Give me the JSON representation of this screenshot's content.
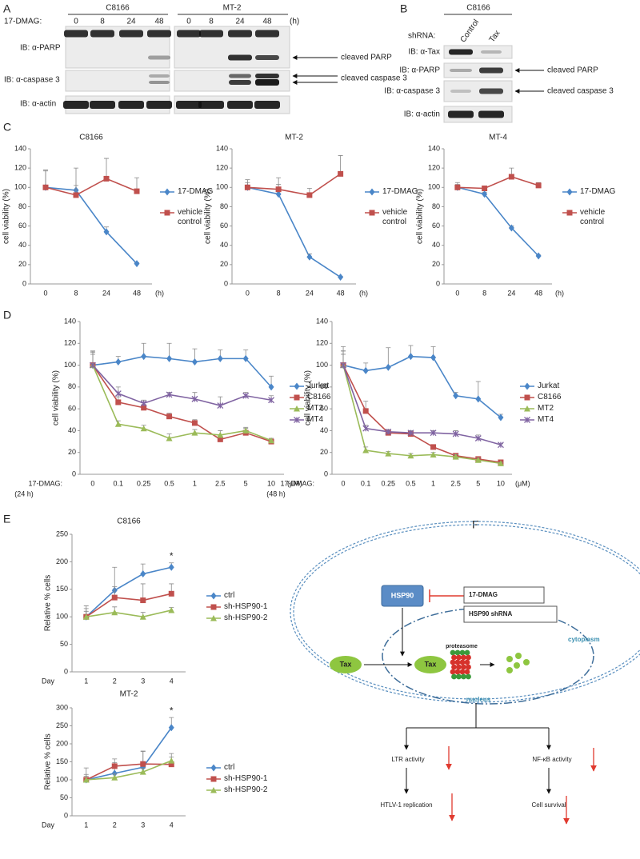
{
  "panels": [
    "A",
    "B",
    "C",
    "D",
    "E",
    "F"
  ],
  "blot_a": {
    "treatment_label": "17-DMAG:",
    "groups": [
      "C8166",
      "MT-2"
    ],
    "lanes": [
      0,
      8,
      24,
      48
    ],
    "unit": "(h)",
    "rows": [
      "IB: α-PARP",
      "IB: α-caspase 3",
      "IB: α-actin"
    ],
    "arrows": [
      "cleaved PARP",
      "cleaved caspase 3"
    ]
  },
  "blot_b": {
    "group": "C8166",
    "shrna_label": "shRNA:",
    "lanes": [
      "Control",
      "Tax"
    ],
    "rows": [
      "IB: α-Tax",
      "IB: α-PARP",
      "IB: α-caspase 3",
      "IB: α-actin"
    ],
    "arrows": [
      "cleaved PARP",
      "cleaved caspase 3"
    ]
  },
  "chart_data": [
    {
      "type": "line",
      "title": "C8166",
      "ylabel": "cell viability (%)",
      "categories": [
        0,
        8,
        24,
        48
      ],
      "x_unit": "(h)",
      "ylim": [
        0,
        140
      ],
      "yticks": [
        0,
        20,
        40,
        60,
        80,
        100,
        120,
        140
      ],
      "legend": "right",
      "series": [
        {
          "name": "17-DMAG",
          "color": "#4a86c8",
          "marker": "diamond",
          "values": [
            100,
            97,
            54,
            21
          ],
          "errors": [
            18,
            23,
            5,
            1
          ]
        },
        {
          "name": "vehicle control",
          "color": "#c0504d",
          "marker": "square",
          "values": [
            100,
            92,
            109,
            96
          ],
          "errors": [
            17,
            10,
            21,
            14
          ]
        }
      ]
    },
    {
      "type": "line",
      "title": "MT-2",
      "ylabel": "cell viability (%)",
      "categories": [
        0,
        8,
        24,
        48
      ],
      "x_unit": "(h)",
      "ylim": [
        0,
        140
      ],
      "yticks": [
        0,
        20,
        40,
        60,
        80,
        100,
        120,
        140
      ],
      "legend": "right",
      "series": [
        {
          "name": "17-DMAG",
          "color": "#4a86c8",
          "marker": "diamond",
          "values": [
            100,
            93,
            28,
            7
          ],
          "errors": [
            8,
            10,
            3,
            1
          ]
        },
        {
          "name": "vehicle control",
          "color": "#c0504d",
          "marker": "square",
          "values": [
            100,
            98,
            92,
            114
          ],
          "errors": [
            5,
            12,
            7,
            19
          ]
        }
      ]
    },
    {
      "type": "line",
      "title": "MT-4",
      "ylabel": "cell viability (%)",
      "categories": [
        0,
        8,
        24,
        48
      ],
      "x_unit": "(h)",
      "ylim": [
        0,
        140
      ],
      "yticks": [
        0,
        20,
        40,
        60,
        80,
        100,
        120,
        140
      ],
      "legend": "right",
      "series": [
        {
          "name": "17-DMAG",
          "color": "#4a86c8",
          "marker": "diamond",
          "values": [
            100,
            93,
            58,
            29
          ],
          "errors": [
            5,
            2,
            2,
            1
          ]
        },
        {
          "name": "vehicle control",
          "color": "#c0504d",
          "marker": "square",
          "values": [
            100,
            99,
            111,
            102
          ],
          "errors": [
            3,
            2,
            9,
            3
          ]
        }
      ]
    },
    {
      "type": "line",
      "ylabel": "cell viability (%)",
      "categories": [
        0,
        0.1,
        0.25,
        0.5,
        1,
        2.5,
        5,
        10
      ],
      "x_unit": "(μM)",
      "x_prefix": "17-DMAG:",
      "x_prefix_note": "(24 h)",
      "ylim": [
        0,
        140
      ],
      "yticks": [
        0,
        20,
        40,
        60,
        80,
        100,
        120,
        140
      ],
      "legend": "right",
      "series": [
        {
          "name": "Jurkat",
          "color": "#4a86c8",
          "marker": "diamond",
          "values": [
            100,
            103,
            108,
            106,
            103,
            106,
            106,
            80
          ],
          "errors": [
            12,
            5,
            12,
            14,
            12,
            8,
            8,
            10
          ]
        },
        {
          "name": "C8166",
          "color": "#c0504d",
          "marker": "square",
          "values": [
            100,
            66,
            61,
            53,
            47,
            32,
            38,
            30
          ],
          "errors": [
            13,
            5,
            3,
            3,
            3,
            3,
            4,
            2
          ]
        },
        {
          "name": "MT2",
          "color": "#9bbb59",
          "marker": "triangle",
          "values": [
            100,
            46,
            42,
            33,
            38,
            36,
            40,
            31
          ],
          "errors": [
            12,
            3,
            3,
            4,
            3,
            4,
            3,
            2
          ]
        },
        {
          "name": "MT4",
          "color": "#8064a2",
          "marker": "cross",
          "values": [
            100,
            74,
            65,
            73,
            69,
            63,
            72,
            68
          ],
          "errors": [
            10,
            6,
            3,
            2,
            6,
            8,
            3,
            4
          ]
        }
      ]
    },
    {
      "type": "line",
      "ylabel": "cell viability (%)",
      "categories": [
        0,
        0.1,
        0.25,
        0.5,
        1,
        2.5,
        5,
        10
      ],
      "x_unit": "(μM)",
      "x_prefix": "17-DMAG:",
      "x_prefix_note": "(48 h)",
      "ylim": [
        0,
        140
      ],
      "yticks": [
        0,
        20,
        40,
        60,
        80,
        100,
        120,
        140
      ],
      "legend": "right",
      "series": [
        {
          "name": "Jurkat",
          "color": "#4a86c8",
          "marker": "diamond",
          "values": [
            100,
            95,
            98,
            108,
            107,
            72,
            69,
            52
          ],
          "errors": [
            17,
            7,
            18,
            10,
            10,
            3,
            16,
            3
          ]
        },
        {
          "name": "C8166",
          "color": "#c0504d",
          "marker": "square",
          "values": [
            100,
            58,
            38,
            37,
            25,
            17,
            14,
            11
          ],
          "errors": [
            13,
            9,
            2,
            2,
            1,
            2,
            2,
            1
          ]
        },
        {
          "name": "MT2",
          "color": "#9bbb59",
          "marker": "triangle",
          "values": [
            100,
            22,
            19,
            17,
            18,
            16,
            13,
            10
          ],
          "errors": [
            13,
            3,
            2,
            2,
            2,
            2,
            2,
            1
          ]
        },
        {
          "name": "MT4",
          "color": "#8064a2",
          "marker": "cross",
          "values": [
            100,
            42,
            39,
            38,
            38,
            37,
            33,
            27
          ],
          "errors": [
            10,
            3,
            2,
            2,
            2,
            3,
            3,
            1
          ]
        }
      ]
    },
    {
      "type": "line",
      "title": "C8166",
      "ylabel": "Relative % cells",
      "categories": [
        1,
        2,
        3,
        4
      ],
      "x_prefix": "Day",
      "annotation": "*",
      "ylim": [
        0,
        250
      ],
      "yticks": [
        0,
        50,
        100,
        150,
        200,
        250
      ],
      "legend": "right",
      "series": [
        {
          "name": "ctrl",
          "color": "#4a86c8",
          "marker": "diamond",
          "values": [
            100,
            148,
            178,
            190
          ],
          "errors": [
            20,
            42,
            18,
            8
          ]
        },
        {
          "name": "sh-HSP90-1",
          "color": "#c0504d",
          "marker": "square",
          "values": [
            100,
            135,
            130,
            142
          ],
          "errors": [
            15,
            20,
            30,
            18
          ]
        },
        {
          "name": "sh-HSP90-2",
          "color": "#9bbb59",
          "marker": "triangle",
          "values": [
            100,
            108,
            100,
            112
          ],
          "errors": [
            10,
            10,
            8,
            5
          ]
        }
      ]
    },
    {
      "type": "line",
      "title": "MT-2",
      "ylabel": "Relative % cells",
      "categories": [
        1,
        2,
        3,
        4
      ],
      "x_prefix": "Day",
      "annotation": "*",
      "ylim": [
        0,
        300
      ],
      "yticks": [
        0,
        50,
        100,
        150,
        200,
        250,
        300
      ],
      "legend": "right",
      "series": [
        {
          "name": "ctrl",
          "color": "#4a86c8",
          "marker": "diamond",
          "values": [
            100,
            118,
            135,
            245
          ],
          "errors": [
            33,
            30,
            45,
            28
          ]
        },
        {
          "name": "sh-HSP90-1",
          "color": "#c0504d",
          "marker": "square",
          "values": [
            100,
            138,
            144,
            143
          ],
          "errors": [
            10,
            20,
            35,
            20
          ]
        },
        {
          "name": "sh-HSP90-2",
          "color": "#9bbb59",
          "marker": "triangle",
          "values": [
            100,
            106,
            122,
            153
          ],
          "errors": [
            15,
            10,
            10,
            20
          ]
        }
      ]
    }
  ],
  "diagram": {
    "drug": "17-DMAG",
    "shrna": "HSP90 shRNA",
    "hsp90": "HSP90",
    "tax": "Tax",
    "proteasome": "proteasome",
    "cytoplasm": "cytoplasm",
    "nucleus": "nucleus",
    "ltr": "LTR activity",
    "nfkb": "NF-κB activity",
    "replication": "HTLV-1 replication",
    "survival": "Cell survival"
  }
}
